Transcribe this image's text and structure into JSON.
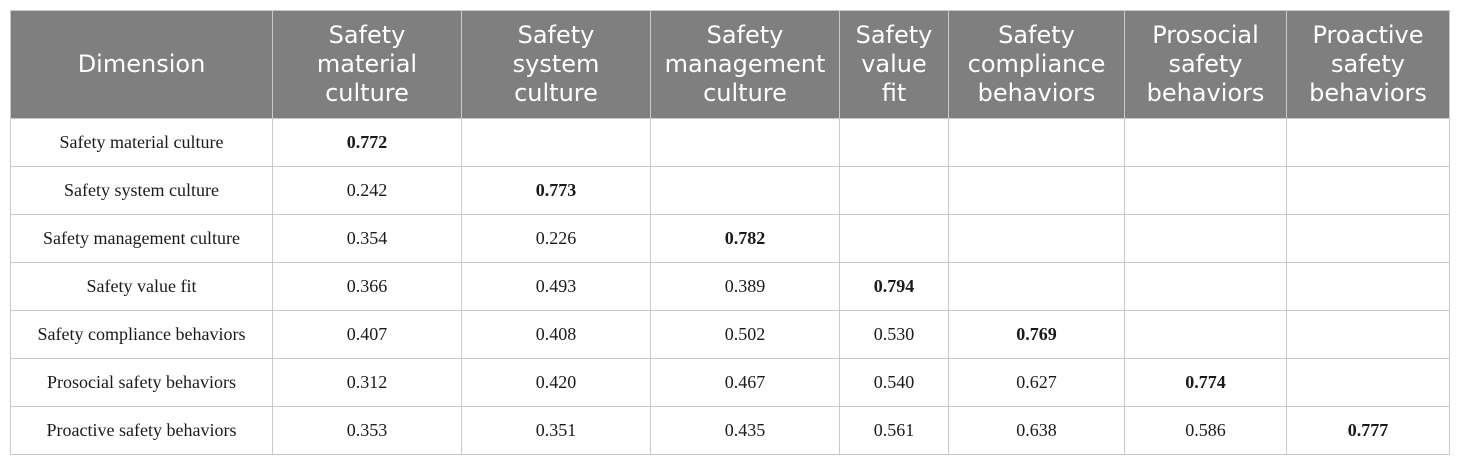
{
  "table": {
    "headers": [
      [
        "Dimension"
      ],
      [
        "Safety",
        "material",
        "culture"
      ],
      [
        "Safety",
        "system",
        "culture"
      ],
      [
        "Safety",
        "management",
        "culture"
      ],
      [
        "Safety",
        "value",
        "fit"
      ],
      [
        "Safety",
        "compliance",
        "behaviors"
      ],
      [
        "Prosocial",
        "safety",
        "behaviors"
      ],
      [
        "Proactive",
        "safety",
        "behaviors"
      ]
    ],
    "rows": [
      [
        "Safety material culture",
        "0.772",
        "",
        "",
        "",
        "",
        "",
        ""
      ],
      [
        "Safety system culture",
        "0.242",
        "0.773",
        "",
        "",
        "",
        "",
        ""
      ],
      [
        "Safety management culture",
        "0.354",
        "0.226",
        "0.782",
        "",
        "",
        "",
        ""
      ],
      [
        "Safety value fit",
        "0.366",
        "0.493",
        "0.389",
        "0.794",
        "",
        "",
        ""
      ],
      [
        "Safety compliance behaviors",
        "0.407",
        "0.408",
        "0.502",
        "0.530",
        "0.769",
        "",
        ""
      ],
      [
        "Prosocial safety behaviors",
        "0.312",
        "0.420",
        "0.467",
        "0.540",
        "0.627",
        "0.774",
        ""
      ],
      [
        "Proactive safety behaviors",
        "0.353",
        "0.351",
        "0.435",
        "0.561",
        "0.638",
        "0.586",
        "0.777"
      ]
    ],
    "bold_diagonal": true,
    "colors": {
      "header_bg": "#7f7f7f",
      "header_text": "#ffffff",
      "grid": "#c9c9c9",
      "body_text": "#1a1a1a"
    }
  }
}
